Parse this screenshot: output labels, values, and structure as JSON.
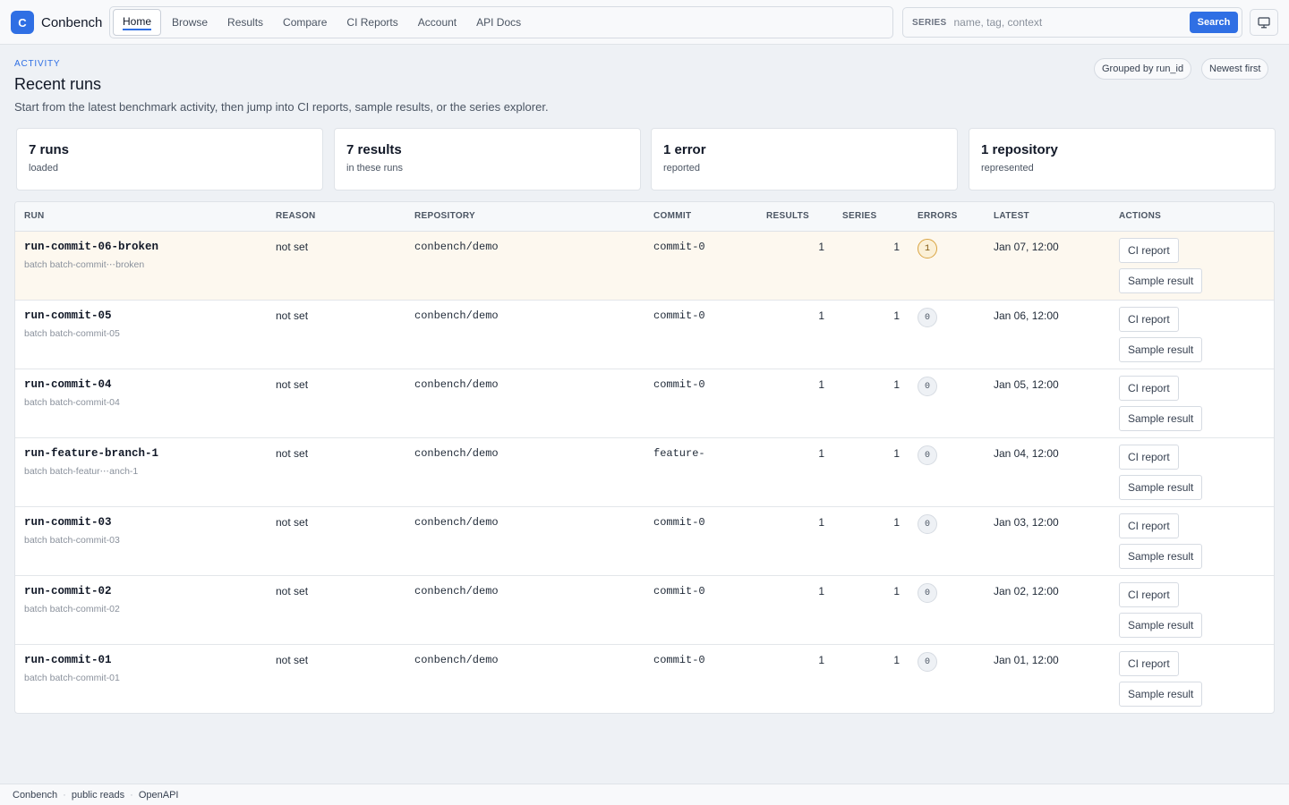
{
  "app": {
    "logo_letter": "C",
    "name": "Conbench"
  },
  "nav": {
    "items": [
      {
        "label": "Home",
        "active": true
      },
      {
        "label": "Browse"
      },
      {
        "label": "Results"
      },
      {
        "label": "Compare"
      },
      {
        "label": "CI Reports"
      },
      {
        "label": "Account"
      },
      {
        "label": "API Docs"
      }
    ]
  },
  "search": {
    "label": "SERIES",
    "placeholder": "name, tag, context",
    "button": "Search"
  },
  "header": {
    "eyebrow": "ACTIVITY",
    "title": "Recent runs",
    "subtitle": "Start from the latest benchmark activity, then jump into CI reports, sample results, or the series explorer.",
    "chips": [
      "Grouped by run_id",
      "Newest first"
    ]
  },
  "stats": [
    {
      "value": "7 runs",
      "label": "loaded"
    },
    {
      "value": "7 results",
      "label": "in these runs"
    },
    {
      "value": "1 error",
      "label": "reported"
    },
    {
      "value": "1 repository",
      "label": "represented"
    }
  ],
  "table": {
    "columns": [
      "RUN",
      "REASON",
      "REPOSITORY",
      "COMMIT",
      "RESULTS",
      "SERIES",
      "ERRORS",
      "LATEST",
      "ACTIONS"
    ],
    "actions": {
      "ci_report": "CI report",
      "sample_result": "Sample result"
    },
    "rows": [
      {
        "run": "run-commit-06-broken",
        "batch": "batch batch-commit⋯broken",
        "reason": "not set",
        "repository": "conbench/demo",
        "commit": "commit-0",
        "results": "1",
        "series": "1",
        "errors": "1",
        "latest": "Jan 07, 12:00"
      },
      {
        "run": "run-commit-05",
        "batch": "batch batch-commit-05",
        "reason": "not set",
        "repository": "conbench/demo",
        "commit": "commit-0",
        "results": "1",
        "series": "1",
        "errors": "0",
        "latest": "Jan 06, 12:00"
      },
      {
        "run": "run-commit-04",
        "batch": "batch batch-commit-04",
        "reason": "not set",
        "repository": "conbench/demo",
        "commit": "commit-0",
        "results": "1",
        "series": "1",
        "errors": "0",
        "latest": "Jan 05, 12:00"
      },
      {
        "run": "run-feature-branch-1",
        "batch": "batch batch-featur⋯anch-1",
        "reason": "not set",
        "repository": "conbench/demo",
        "commit": "feature-",
        "results": "1",
        "series": "1",
        "errors": "0",
        "latest": "Jan 04, 12:00"
      },
      {
        "run": "run-commit-03",
        "batch": "batch batch-commit-03",
        "reason": "not set",
        "repository": "conbench/demo",
        "commit": "commit-0",
        "results": "1",
        "series": "1",
        "errors": "0",
        "latest": "Jan 03, 12:00"
      },
      {
        "run": "run-commit-02",
        "batch": "batch batch-commit-02",
        "reason": "not set",
        "repository": "conbench/demo",
        "commit": "commit-0",
        "results": "1",
        "series": "1",
        "errors": "0",
        "latest": "Jan 02, 12:00"
      },
      {
        "run": "run-commit-01",
        "batch": "batch batch-commit-01",
        "reason": "not set",
        "repository": "conbench/demo",
        "commit": "commit-0",
        "results": "1",
        "series": "1",
        "errors": "0",
        "latest": "Jan 01, 12:00"
      }
    ]
  },
  "footer": {
    "items": [
      "Conbench",
      "public reads",
      "OpenAPI"
    ]
  },
  "colors": {
    "accent": "#2f6fe4",
    "warn_row": "#fdf8ef",
    "warn_badge": "#d9a441"
  }
}
